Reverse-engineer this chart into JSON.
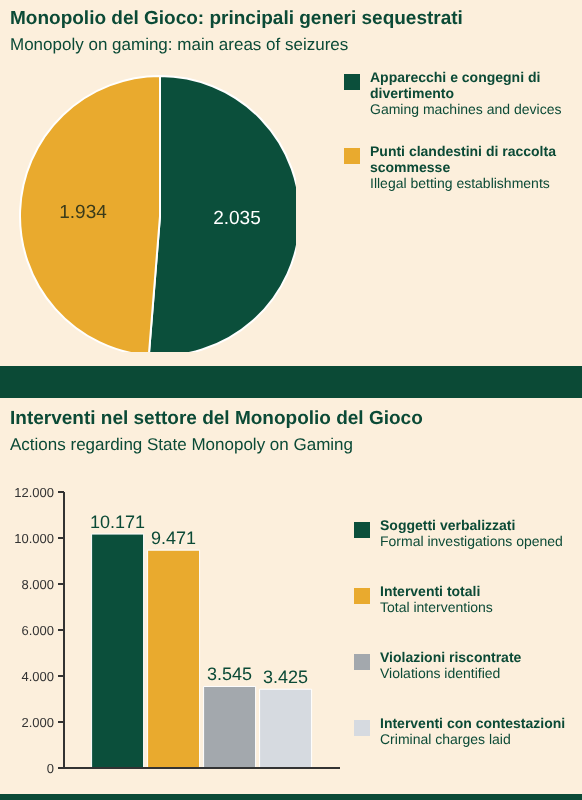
{
  "chart_data": [
    {
      "type": "pie",
      "title": "Monopolio del Gioco: principali generi sequestrati",
      "subtitle": "Monopoly on gaming: main areas of seizures",
      "categories": [
        "Apparecchi e congegni di divertimento\nGaming machines and devices",
        "Punti clandestini di raccolta scommesse\nIllegal betting establishments"
      ],
      "values": [
        2035,
        1934
      ],
      "colors": [
        "#0b4f3b",
        "#e9aa2e"
      ],
      "value_labels": [
        "2.035",
        "1.934"
      ],
      "legend": "right"
    },
    {
      "type": "bar",
      "title": "Interventi nel settore del Monopolio del Gioco",
      "subtitle": "Actions regarding State Monopoly on Gaming",
      "categories": [
        null
      ],
      "series": [
        {
          "name": "Soggetti verbalizzati\nFormal investigations opened",
          "color": "#0b4f3b",
          "values": [
            10171
          ],
          "value_labels": [
            "10.171"
          ]
        },
        {
          "name": "Interventi totali\nTotal interventions",
          "color": "#e9aa2e",
          "values": [
            9471
          ],
          "value_labels": [
            "9.471"
          ]
        },
        {
          "name": "Violazioni riscontrate\nViolations identified",
          "color": "#a3a8ad",
          "values": [
            3545
          ],
          "value_labels": [
            "3.545"
          ]
        },
        {
          "name": "Interventi con contestazioni\nCriminal charges laid",
          "color": "#d6dae0",
          "values": [
            3425
          ],
          "value_labels": [
            "3.425"
          ]
        }
      ],
      "ylim": [
        0,
        12000
      ],
      "yticks": [
        {
          "value": 0,
          "label": "0"
        },
        {
          "value": 2000,
          "label": "2.000"
        },
        {
          "value": 4000,
          "label": "4.000"
        },
        {
          "value": 6000,
          "label": "6.000"
        },
        {
          "value": 8000,
          "label": "8.000"
        },
        {
          "value": 10000,
          "label": "10.000"
        },
        {
          "value": 12000,
          "label": "12.000"
        }
      ],
      "tick_labels": "y",
      "legend": "right",
      "grid": false
    }
  ]
}
